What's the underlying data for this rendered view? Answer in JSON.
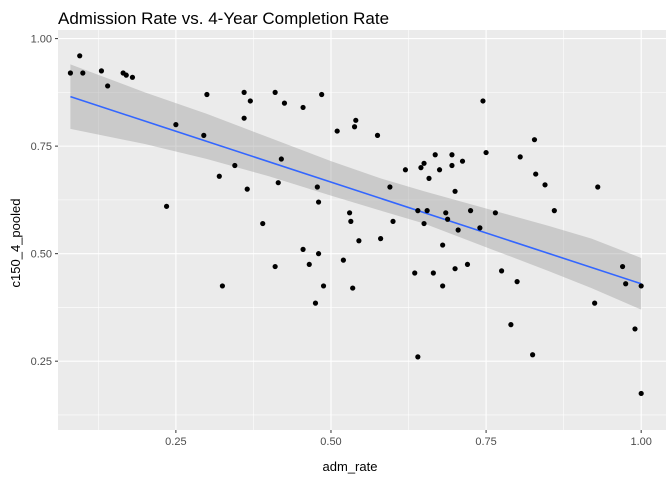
{
  "chart_data": {
    "type": "scatter",
    "title": "Admission Rate vs. 4-Year Completion Rate",
    "xlabel": "adm_rate",
    "ylabel": "c150_4_pooled",
    "xlim": [
      0.06,
      1.04
    ],
    "ylim": [
      0.09,
      1.02
    ],
    "x_ticks": [
      0.25,
      0.5,
      0.75,
      1.0
    ],
    "x_tick_labels": [
      "0.25",
      "0.50",
      "0.75",
      "1.00"
    ],
    "y_ticks": [
      0.25,
      0.5,
      0.75,
      1.0
    ],
    "y_tick_labels": [
      "0.25",
      "0.50",
      "0.75",
      "1.00"
    ],
    "grid": true,
    "legend": "none",
    "colors": {
      "panel": "#ebebeb",
      "grid": "#ffffff",
      "points": "#000000",
      "trend_line": "#3366ff",
      "confidence_band": "#999999"
    },
    "points": [
      {
        "x": 0.08,
        "y": 0.92
      },
      {
        "x": 0.095,
        "y": 0.96
      },
      {
        "x": 0.1,
        "y": 0.92
      },
      {
        "x": 0.13,
        "y": 0.925
      },
      {
        "x": 0.14,
        "y": 0.89
      },
      {
        "x": 0.165,
        "y": 0.92
      },
      {
        "x": 0.17,
        "y": 0.915
      },
      {
        "x": 0.18,
        "y": 0.91
      },
      {
        "x": 0.235,
        "y": 0.61
      },
      {
        "x": 0.25,
        "y": 0.8
      },
      {
        "x": 0.295,
        "y": 0.775
      },
      {
        "x": 0.3,
        "y": 0.87
      },
      {
        "x": 0.32,
        "y": 0.68
      },
      {
        "x": 0.325,
        "y": 0.425
      },
      {
        "x": 0.345,
        "y": 0.705
      },
      {
        "x": 0.36,
        "y": 0.815
      },
      {
        "x": 0.36,
        "y": 0.875
      },
      {
        "x": 0.365,
        "y": 0.65
      },
      {
        "x": 0.37,
        "y": 0.855
      },
      {
        "x": 0.39,
        "y": 0.57
      },
      {
        "x": 0.41,
        "y": 0.875
      },
      {
        "x": 0.41,
        "y": 0.47
      },
      {
        "x": 0.415,
        "y": 0.665
      },
      {
        "x": 0.42,
        "y": 0.72
      },
      {
        "x": 0.425,
        "y": 0.85
      },
      {
        "x": 0.455,
        "y": 0.84
      },
      {
        "x": 0.455,
        "y": 0.51
      },
      {
        "x": 0.465,
        "y": 0.475
      },
      {
        "x": 0.475,
        "y": 0.385
      },
      {
        "x": 0.478,
        "y": 0.655
      },
      {
        "x": 0.48,
        "y": 0.62
      },
      {
        "x": 0.48,
        "y": 0.5
      },
      {
        "x": 0.485,
        "y": 0.87
      },
      {
        "x": 0.488,
        "y": 0.425
      },
      {
        "x": 0.51,
        "y": 0.785
      },
      {
        "x": 0.52,
        "y": 0.485
      },
      {
        "x": 0.53,
        "y": 0.595
      },
      {
        "x": 0.532,
        "y": 0.575
      },
      {
        "x": 0.535,
        "y": 0.42
      },
      {
        "x": 0.538,
        "y": 0.795
      },
      {
        "x": 0.54,
        "y": 0.81
      },
      {
        "x": 0.545,
        "y": 0.53
      },
      {
        "x": 0.575,
        "y": 0.775
      },
      {
        "x": 0.58,
        "y": 0.535
      },
      {
        "x": 0.595,
        "y": 0.655
      },
      {
        "x": 0.6,
        "y": 0.575
      },
      {
        "x": 0.62,
        "y": 0.695
      },
      {
        "x": 0.635,
        "y": 0.455
      },
      {
        "x": 0.64,
        "y": 0.26
      },
      {
        "x": 0.64,
        "y": 0.6
      },
      {
        "x": 0.645,
        "y": 0.7
      },
      {
        "x": 0.65,
        "y": 0.71
      },
      {
        "x": 0.65,
        "y": 0.57
      },
      {
        "x": 0.655,
        "y": 0.6
      },
      {
        "x": 0.658,
        "y": 0.675
      },
      {
        "x": 0.665,
        "y": 0.455
      },
      {
        "x": 0.668,
        "y": 0.73
      },
      {
        "x": 0.675,
        "y": 0.695
      },
      {
        "x": 0.68,
        "y": 0.425
      },
      {
        "x": 0.68,
        "y": 0.52
      },
      {
        "x": 0.685,
        "y": 0.595
      },
      {
        "x": 0.688,
        "y": 0.58
      },
      {
        "x": 0.695,
        "y": 0.705
      },
      {
        "x": 0.695,
        "y": 0.73
      },
      {
        "x": 0.7,
        "y": 0.645
      },
      {
        "x": 0.7,
        "y": 0.465
      },
      {
        "x": 0.705,
        "y": 0.555
      },
      {
        "x": 0.712,
        "y": 0.715
      },
      {
        "x": 0.72,
        "y": 0.475
      },
      {
        "x": 0.725,
        "y": 0.6
      },
      {
        "x": 0.74,
        "y": 0.56
      },
      {
        "x": 0.745,
        "y": 0.855
      },
      {
        "x": 0.75,
        "y": 0.735
      },
      {
        "x": 0.765,
        "y": 0.595
      },
      {
        "x": 0.775,
        "y": 0.46
      },
      {
        "x": 0.79,
        "y": 0.335
      },
      {
        "x": 0.8,
        "y": 0.435
      },
      {
        "x": 0.805,
        "y": 0.725
      },
      {
        "x": 0.825,
        "y": 0.265
      },
      {
        "x": 0.828,
        "y": 0.765
      },
      {
        "x": 0.83,
        "y": 0.685
      },
      {
        "x": 0.845,
        "y": 0.66
      },
      {
        "x": 0.86,
        "y": 0.6
      },
      {
        "x": 0.925,
        "y": 0.385
      },
      {
        "x": 0.93,
        "y": 0.655
      },
      {
        "x": 0.97,
        "y": 0.47
      },
      {
        "x": 0.975,
        "y": 0.43
      },
      {
        "x": 0.99,
        "y": 0.325
      },
      {
        "x": 1.0,
        "y": 0.175
      },
      {
        "x": 1.0,
        "y": 0.425
      }
    ],
    "trend_line": {
      "x": [
        0.08,
        1.0
      ],
      "y": [
        0.865,
        0.43
      ]
    },
    "confidence_band": {
      "x": [
        0.08,
        0.2,
        0.3,
        0.4,
        0.5,
        0.58,
        0.65,
        0.75,
        0.85,
        0.92,
        1.0
      ],
      "lower": [
        0.79,
        0.755,
        0.72,
        0.68,
        0.635,
        0.6,
        0.57,
        0.515,
        0.46,
        0.42,
        0.37
      ],
      "upper": [
        0.94,
        0.875,
        0.825,
        0.77,
        0.715,
        0.675,
        0.645,
        0.605,
        0.565,
        0.535,
        0.49
      ]
    }
  }
}
